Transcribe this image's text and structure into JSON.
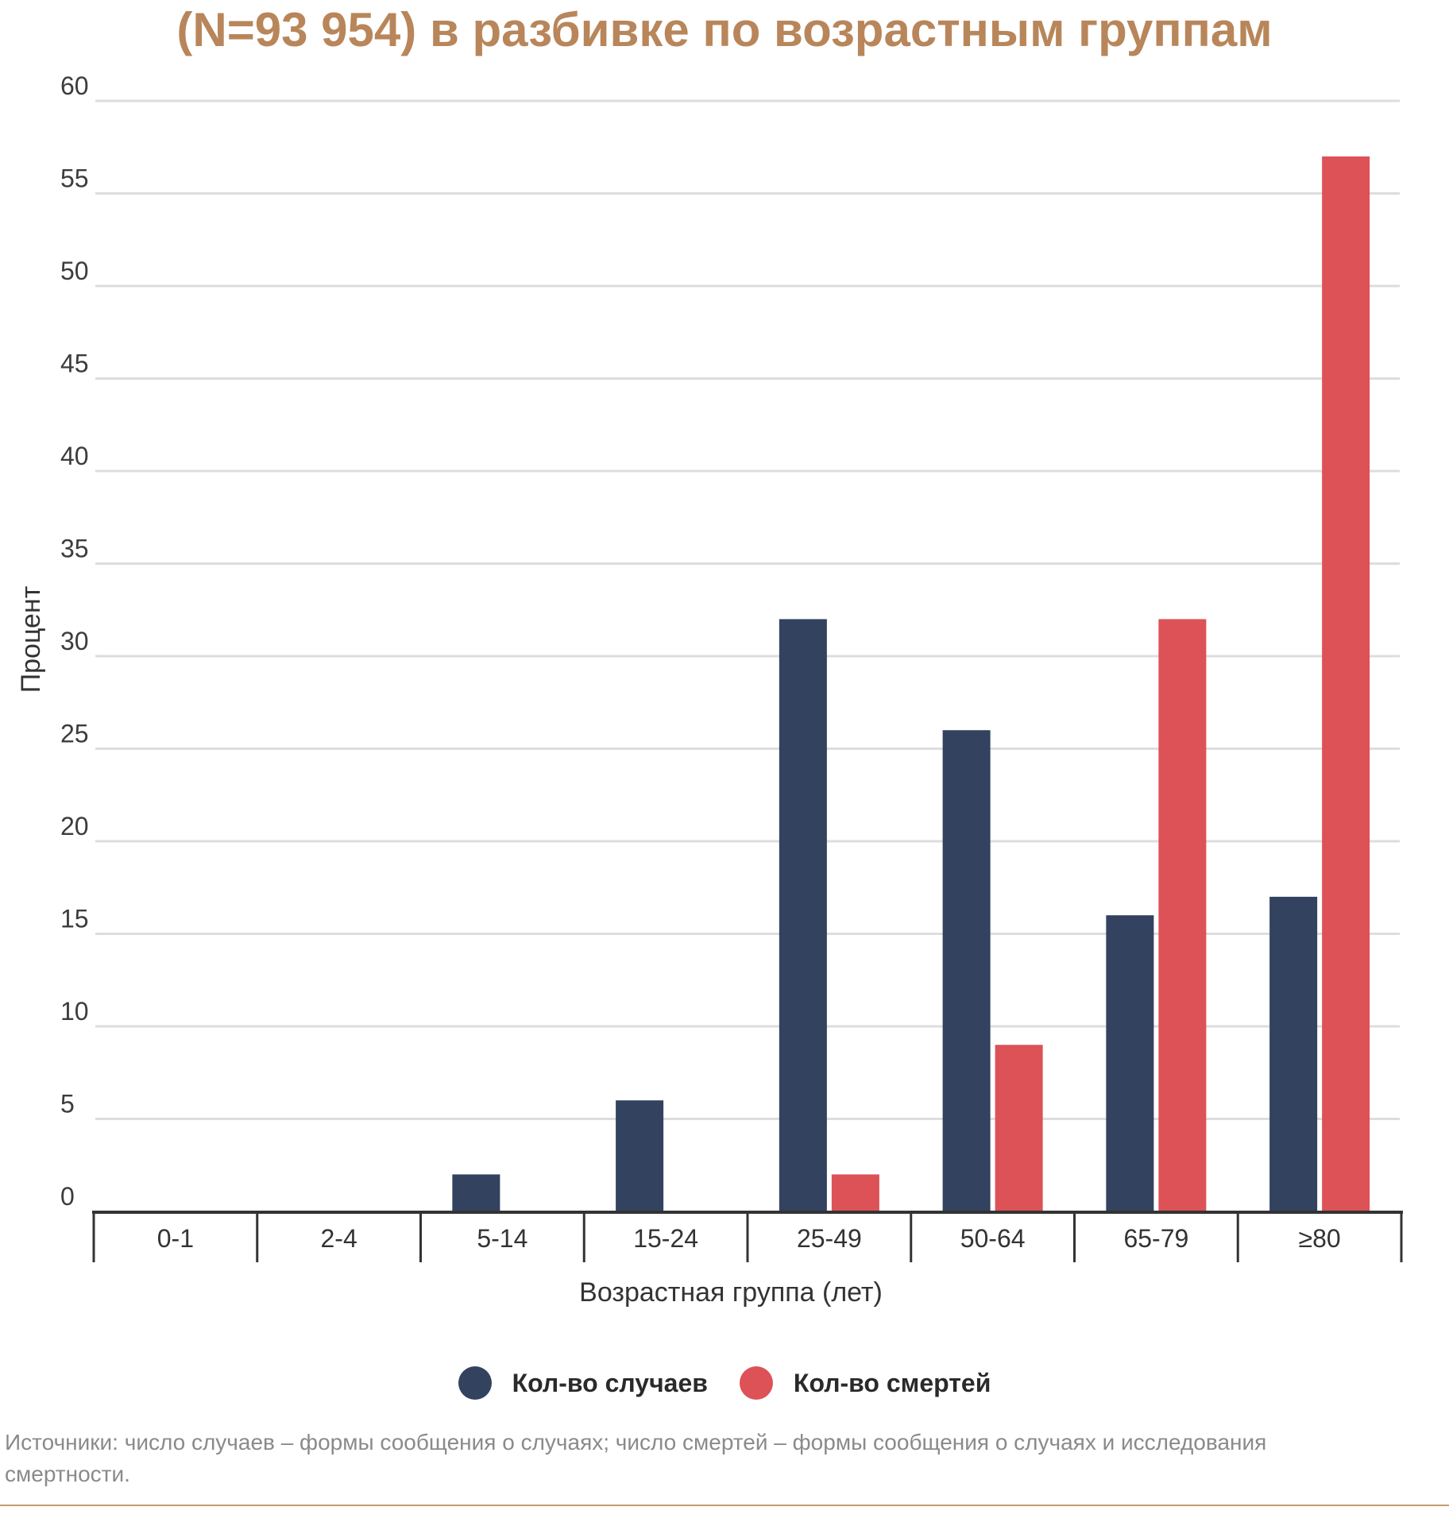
{
  "title": "(N=93 954) в разбивке по возрастным группам",
  "source_note": "Источники: число случаев – формы сообщения о случаях; число смертей – формы сообщения о случаях и исследования смертности.",
  "colors": {
    "title": "#b8865a",
    "cases": "#32425f",
    "deaths": "#dc5257",
    "grid": "#dddddd",
    "axis": "#333333"
  },
  "chart_data": {
    "type": "bar",
    "title": "(N=93 954) в разбивке по возрастным группам",
    "xlabel": "Возрастная группа (лет)",
    "ylabel": "Процент",
    "ylim": [
      0,
      60
    ],
    "yticks": [
      0,
      5,
      10,
      15,
      20,
      25,
      30,
      35,
      40,
      45,
      50,
      55,
      60
    ],
    "grid": true,
    "legend_position": "bottom-center",
    "categories": [
      "0-1",
      "2-4",
      "5-14",
      "15-24",
      "25-49",
      "50-64",
      "65-79",
      "≥80"
    ],
    "series": [
      {
        "name": "Кол-во случаев",
        "color": "#32425f",
        "values": [
          0,
          0,
          2,
          6,
          32,
          26,
          16,
          17
        ]
      },
      {
        "name": "Кол-во смертей",
        "color": "#dc5257",
        "values": [
          0,
          0,
          0,
          0,
          2,
          9,
          32,
          57
        ]
      }
    ]
  }
}
